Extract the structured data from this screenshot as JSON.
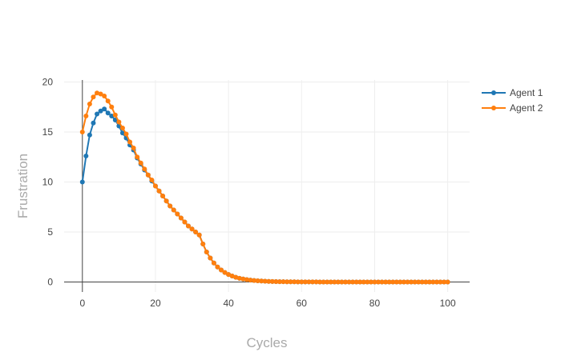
{
  "chart_data": {
    "type": "line",
    "title": "",
    "xlabel": "Cycles",
    "ylabel": "Frustration",
    "xlim": [
      -5,
      106
    ],
    "ylim": [
      -1,
      20.2
    ],
    "x_ticks": [
      0,
      20,
      40,
      60,
      80,
      100
    ],
    "y_ticks": [
      0,
      5,
      10,
      15,
      20
    ],
    "grid": true,
    "legend_position": "top-right",
    "x": [
      0,
      1,
      2,
      3,
      4,
      5,
      6,
      7,
      8,
      9,
      10,
      11,
      12,
      13,
      14,
      15,
      16,
      17,
      18,
      19,
      20,
      21,
      22,
      23,
      24,
      25,
      26,
      27,
      28,
      29,
      30,
      31,
      32,
      33,
      34,
      35,
      36,
      37,
      38,
      39,
      40,
      41,
      42,
      43,
      44,
      45,
      46,
      47,
      48,
      49,
      50,
      51,
      52,
      53,
      54,
      55,
      56,
      57,
      58,
      59,
      60,
      61,
      62,
      63,
      64,
      65,
      66,
      67,
      68,
      69,
      70,
      71,
      72,
      73,
      74,
      75,
      76,
      77,
      78,
      79,
      80,
      81,
      82,
      83,
      84,
      85,
      86,
      87,
      88,
      89,
      90,
      91,
      92,
      93,
      94,
      95,
      96,
      97,
      98,
      99,
      100
    ],
    "series": [
      {
        "name": "Agent 1",
        "color": "#1f77b4",
        "values": [
          10.0,
          12.6,
          14.7,
          15.9,
          16.8,
          17.1,
          17.3,
          16.9,
          16.6,
          16.2,
          15.6,
          14.9,
          14.4,
          13.7,
          13.2,
          12.4,
          11.8,
          11.2,
          10.7,
          10.1,
          9.6,
          9.1,
          8.6,
          8.1,
          7.6,
          7.2,
          6.8,
          6.4,
          6.0,
          5.6,
          5.3,
          5.0,
          4.7,
          3.8,
          3.0,
          2.4,
          1.9,
          1.5,
          1.2,
          0.95,
          0.75,
          0.6,
          0.47,
          0.37,
          0.3,
          0.24,
          0.19,
          0.15,
          0.12,
          0.1,
          0.08,
          0.06,
          0.05,
          0.04,
          0.03,
          0.03,
          0.02,
          0.02,
          0.02,
          0.01,
          0.01,
          0.01,
          0.01,
          0.01,
          0.01,
          0.0,
          0.0,
          0.0,
          0.0,
          0.0,
          0.0,
          0.0,
          0.0,
          0.0,
          0.0,
          0.0,
          0.0,
          0.0,
          0.0,
          0.0,
          0.0,
          0.0,
          0.0,
          0.0,
          0.0,
          0.0,
          0.0,
          0.0,
          0.0,
          0.0,
          0.0,
          0.0,
          0.0,
          0.0,
          0.0,
          0.0,
          0.0,
          0.0,
          0.0,
          0.0,
          0.0
        ]
      },
      {
        "name": "Agent 2",
        "color": "#ff7f0e",
        "values": [
          15.0,
          16.6,
          17.8,
          18.5,
          18.9,
          18.8,
          18.6,
          18.1,
          17.5,
          16.7,
          16.0,
          15.4,
          14.8,
          14.0,
          13.4,
          12.5,
          11.9,
          11.3,
          10.7,
          10.2,
          9.6,
          9.1,
          8.6,
          8.1,
          7.6,
          7.2,
          6.8,
          6.4,
          6.0,
          5.6,
          5.3,
          5.0,
          4.7,
          3.8,
          3.0,
          2.4,
          1.9,
          1.5,
          1.2,
          0.95,
          0.75,
          0.6,
          0.47,
          0.37,
          0.3,
          0.24,
          0.19,
          0.15,
          0.12,
          0.1,
          0.08,
          0.06,
          0.05,
          0.04,
          0.03,
          0.03,
          0.02,
          0.02,
          0.02,
          0.01,
          0.01,
          0.01,
          0.01,
          0.01,
          0.01,
          0.0,
          0.0,
          0.0,
          0.0,
          0.0,
          0.0,
          0.0,
          0.0,
          0.0,
          0.0,
          0.0,
          0.0,
          0.0,
          0.0,
          0.0,
          0.0,
          0.0,
          0.0,
          0.0,
          0.0,
          0.0,
          0.0,
          0.0,
          0.0,
          0.0,
          0.0,
          0.0,
          0.0,
          0.0,
          0.0,
          0.0,
          0.0,
          0.0,
          0.0,
          0.0,
          0.0
        ]
      }
    ]
  }
}
